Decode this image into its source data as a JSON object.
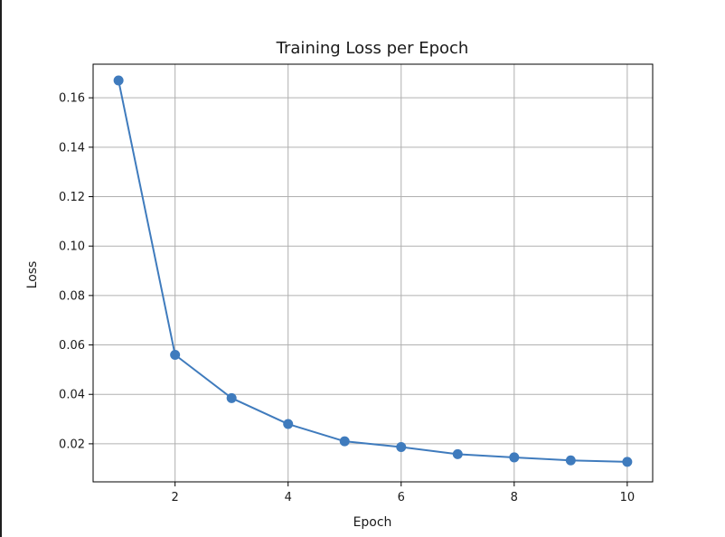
{
  "chart_data": {
    "type": "line",
    "title": "Training Loss per Epoch",
    "xlabel": "Epoch",
    "ylabel": "Loss",
    "x": [
      1,
      2,
      3,
      4,
      5,
      6,
      7,
      8,
      9,
      10
    ],
    "series": [
      {
        "values": [
          0.167,
          0.056,
          0.0385,
          0.028,
          0.021,
          0.0187,
          0.0158,
          0.0145,
          0.0133,
          0.0127
        ],
        "color": "#3f7bbd",
        "marker": "circle"
      }
    ],
    "xlim": [
      0.55,
      10.45
    ],
    "ylim": [
      0.0046,
      0.1736
    ],
    "xticks": [
      2,
      4,
      6,
      8,
      10
    ],
    "yticks": [
      0.02,
      0.04,
      0.06,
      0.08,
      0.1,
      0.12,
      0.14,
      0.16
    ],
    "xtick_labels": [
      "2",
      "4",
      "6",
      "8",
      "10"
    ],
    "ytick_labels": [
      "0.02",
      "0.04",
      "0.06",
      "0.08",
      "0.10",
      "0.12",
      "0.14",
      "0.16"
    ],
    "grid": true,
    "legend": "none"
  }
}
